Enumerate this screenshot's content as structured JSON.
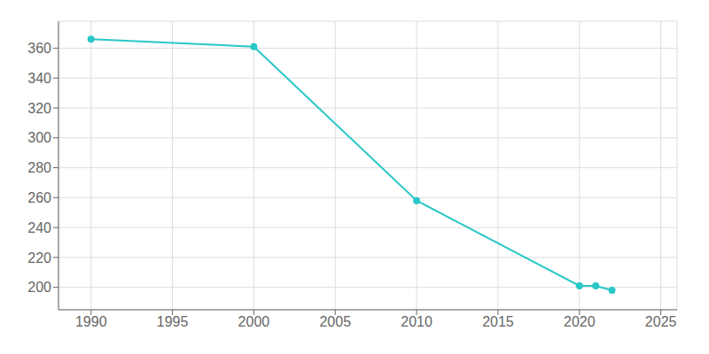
{
  "chart_data": {
    "type": "line",
    "x": [
      1990,
      2000,
      2010,
      2020,
      2021,
      2022
    ],
    "values": [
      366,
      361,
      258,
      201,
      201,
      198
    ],
    "color": "#29c7c7",
    "marker": "circle",
    "xlim": [
      1988,
      2026
    ],
    "ylim": [
      185,
      378
    ],
    "xticks": [
      1990,
      1995,
      2000,
      2005,
      2010,
      2015,
      2020,
      2025
    ],
    "yticks": [
      200,
      220,
      240,
      260,
      280,
      300,
      320,
      340,
      360
    ],
    "grid": true
  }
}
